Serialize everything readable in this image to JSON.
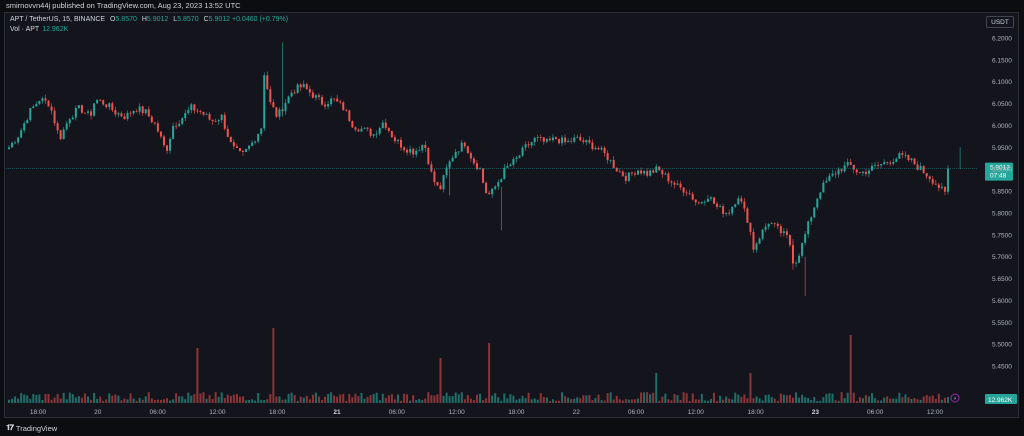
{
  "header": {
    "published": "smirnovvn44j published on TradingView.com, Aug 23, 2023 13:52 UTC"
  },
  "legend": {
    "symbol": "APT / TetherUS, 15, BINANCE",
    "o_label": "O",
    "o_value": "5.8570",
    "h_label": "H",
    "h_value": "5.9012",
    "l_label": "L",
    "l_value": "5.8570",
    "c_label": "C",
    "c_value": "5.9012",
    "change": "+0.0460 (+0.79%)",
    "vol_label": "Vol · APT",
    "vol_value": "12.962K"
  },
  "currency": "USDT",
  "price_axis": {
    "ticks": [
      "6.2000",
      "6.1500",
      "6.1000",
      "6.0500",
      "6.0000",
      "5.9500",
      "5.9000",
      "5.8500",
      "5.8000",
      "5.7500",
      "5.7000",
      "5.6500",
      "5.6000",
      "5.5500",
      "5.5000",
      "5.4500"
    ],
    "current_price": "5.9012",
    "countdown": "07:48",
    "volume_badge": "12.962K"
  },
  "time_axis": {
    "ticks": [
      "18:00",
      "20",
      "06:00",
      "12:00",
      "18:00",
      "21",
      "06:00",
      "12:00",
      "18:00",
      "22",
      "06:00",
      "12:00",
      "18:00",
      "23",
      "06:00",
      "12:00"
    ],
    "bold": [
      false,
      false,
      false,
      false,
      false,
      true,
      false,
      false,
      false,
      false,
      false,
      false,
      false,
      true,
      false,
      false
    ]
  },
  "colors": {
    "up": "#26a69a",
    "down": "#ef5350",
    "vol_up": "#1f6e69",
    "vol_down": "#8c3538",
    "badge": "#26a69a",
    "price_line": "#26a69a"
  },
  "footer": {
    "brand": "TradingView"
  },
  "chart_data": {
    "type": "candlestick",
    "symbol": "APT / TetherUS",
    "interval": "15",
    "ylim": [
      5.45,
      6.2
    ],
    "close_path": [
      [
        0,
        5.95
      ],
      [
        10,
        5.98
      ],
      [
        20,
        6.03
      ],
      [
        30,
        6.06
      ],
      [
        40,
        6.05
      ],
      [
        50,
        5.97
      ],
      [
        60,
        6.02
      ],
      [
        70,
        6.04
      ],
      [
        80,
        6.02
      ],
      [
        85,
        6.06
      ],
      [
        95,
        6.05
      ],
      [
        105,
        6.03
      ],
      [
        115,
        6.02
      ],
      [
        125,
        6.04
      ],
      [
        135,
        6.03
      ],
      [
        145,
        6.0
      ],
      [
        155,
        5.94
      ],
      [
        162,
        6.0
      ],
      [
        172,
        6.02
      ],
      [
        180,
        6.04
      ],
      [
        190,
        6.03
      ],
      [
        200,
        6.01
      ],
      [
        210,
        6.02
      ],
      [
        220,
        5.95
      ],
      [
        230,
        5.93
      ],
      [
        240,
        5.96
      ],
      [
        250,
        6.0
      ],
      [
        252,
        6.12
      ],
      [
        258,
        6.05
      ],
      [
        265,
        6.02
      ],
      [
        272,
        6.05
      ],
      [
        280,
        6.08
      ],
      [
        290,
        6.09
      ],
      [
        300,
        6.07
      ],
      [
        310,
        6.05
      ],
      [
        320,
        6.06
      ],
      [
        330,
        6.04
      ],
      [
        340,
        6.0
      ],
      [
        350,
        5.99
      ],
      [
        360,
        5.98
      ],
      [
        370,
        6.01
      ],
      [
        380,
        5.97
      ],
      [
        390,
        5.95
      ],
      [
        400,
        5.94
      ],
      [
        410,
        5.96
      ],
      [
        418,
        5.88
      ],
      [
        425,
        5.85
      ],
      [
        432,
        5.9
      ],
      [
        440,
        5.94
      ],
      [
        450,
        5.96
      ],
      [
        458,
        5.92
      ],
      [
        465,
        5.9
      ],
      [
        470,
        5.85
      ],
      [
        475,
        5.84
      ],
      [
        480,
        5.86
      ],
      [
        490,
        5.9
      ],
      [
        500,
        5.92
      ],
      [
        510,
        5.95
      ],
      [
        520,
        5.97
      ],
      [
        530,
        5.96
      ],
      [
        540,
        5.97
      ],
      [
        550,
        5.96
      ],
      [
        560,
        5.97
      ],
      [
        570,
        5.96
      ],
      [
        580,
        5.95
      ],
      [
        590,
        5.93
      ],
      [
        600,
        5.9
      ],
      [
        610,
        5.88
      ],
      [
        620,
        5.9
      ],
      [
        630,
        5.89
      ],
      [
        640,
        5.9
      ],
      [
        650,
        5.88
      ],
      [
        660,
        5.86
      ],
      [
        670,
        5.85
      ],
      [
        680,
        5.82
      ],
      [
        690,
        5.84
      ],
      [
        700,
        5.81
      ],
      [
        710,
        5.8
      ],
      [
        720,
        5.84
      ],
      [
        730,
        5.78
      ],
      [
        735,
        5.72
      ],
      [
        742,
        5.75
      ],
      [
        750,
        5.78
      ],
      [
        760,
        5.76
      ],
      [
        770,
        5.74
      ],
      [
        775,
        5.68
      ],
      [
        782,
        5.72
      ],
      [
        790,
        5.78
      ],
      [
        800,
        5.85
      ],
      [
        810,
        5.88
      ],
      [
        820,
        5.9
      ],
      [
        830,
        5.91
      ],
      [
        840,
        5.89
      ],
      [
        850,
        5.9
      ],
      [
        860,
        5.91
      ],
      [
        870,
        5.92
      ],
      [
        880,
        5.93
      ],
      [
        890,
        5.92
      ],
      [
        900,
        5.9
      ],
      [
        910,
        5.88
      ],
      [
        918,
        5.86
      ],
      [
        925,
        5.84
      ],
      [
        930,
        5.9
      ]
    ],
    "volume_spikes": [
      [
        197,
        0.55
      ],
      [
        271,
        0.75
      ],
      [
        438,
        0.45
      ],
      [
        488,
        0.6
      ],
      [
        655,
        0.3
      ],
      [
        748,
        0.3
      ],
      [
        850,
        0.68
      ]
    ]
  }
}
